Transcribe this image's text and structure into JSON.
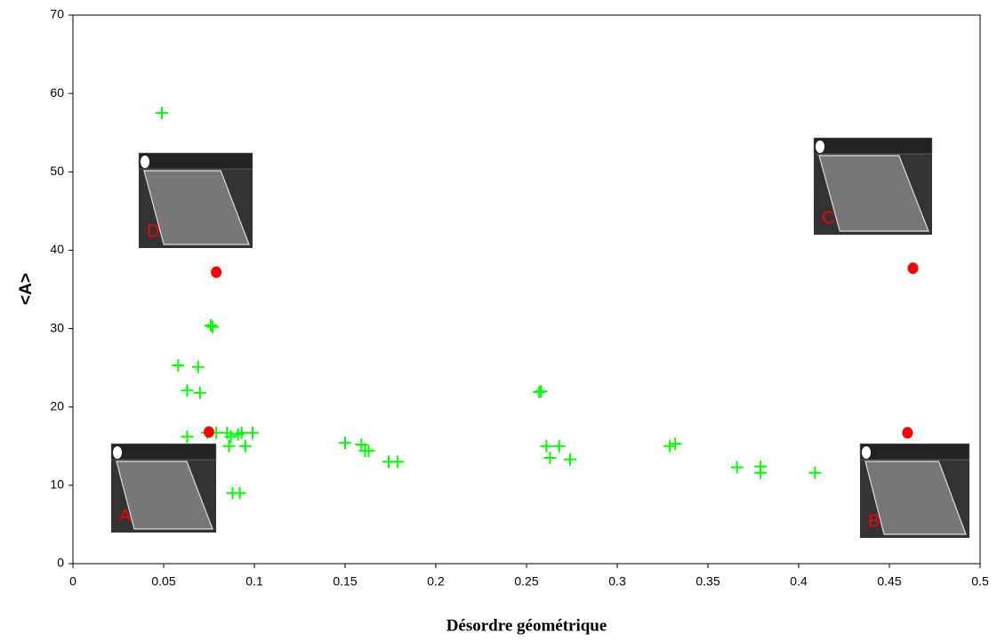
{
  "chart_data": {
    "type": "scatter",
    "x_label": "Désordre géométrique",
    "y_label": "<A>",
    "xlim": [
      0,
      0.5
    ],
    "xticks": [
      0,
      0.05,
      0.1,
      0.15,
      0.2,
      0.25,
      0.3,
      0.35,
      0.4,
      0.45,
      0.5
    ],
    "ylim": [
      0,
      70
    ],
    "yticks": [
      0,
      10,
      20,
      30,
      40,
      50,
      60,
      70
    ],
    "grid": false,
    "annotations": [
      "A",
      "B",
      "C",
      "D"
    ],
    "series": [
      {
        "color": "#00ff00",
        "marker": "plus",
        "x": [
          0.049,
          0.076,
          0.077,
          0.058,
          0.069,
          0.063,
          0.07,
          0.063,
          0.074,
          0.079,
          0.085,
          0.087,
          0.086,
          0.091,
          0.093,
          0.095,
          0.099,
          0.088,
          0.092,
          0.15,
          0.159,
          0.161,
          0.163,
          0.174,
          0.179,
          0.257,
          0.258,
          0.261,
          0.263,
          0.268,
          0.274,
          0.329,
          0.332,
          0.366,
          0.379,
          0.379,
          0.409
        ],
        "values": [
          57.5,
          30.4,
          30.2,
          25.3,
          25.1,
          22.1,
          21.8,
          16.2,
          16.7,
          16.7,
          16.7,
          16.2,
          15.0,
          16.5,
          16.7,
          15.0,
          16.7,
          9.0,
          9.0,
          15.4,
          15.2,
          14.4,
          14.4,
          13.0,
          13.0,
          21.9,
          22.0,
          15.0,
          13.5,
          15.0,
          13.3,
          15.0,
          15.3,
          12.3,
          12.4,
          11.6,
          11.6
        ]
      },
      {
        "color": "#ff0000",
        "marker": "circle",
        "x": [
          0.079,
          0.463,
          0.46,
          0.075
        ],
        "values": [
          37.2,
          37.7,
          16.7,
          16.8
        ]
      }
    ]
  }
}
